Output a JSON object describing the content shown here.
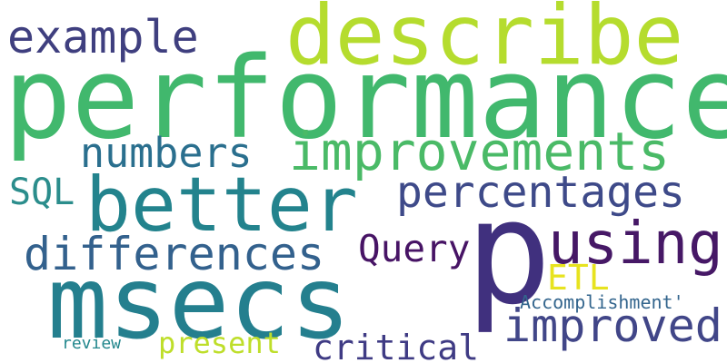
{
  "words": [
    {
      "id": "performance",
      "text": "performance",
      "color": "#41b86d"
    },
    {
      "id": "describe",
      "text": "describe",
      "color": "#b5dc2e"
    },
    {
      "id": "example",
      "text": "example",
      "color": "#3f3f7f"
    },
    {
      "id": "improvements",
      "text": "improvements",
      "color": "#4aba67"
    },
    {
      "id": "numbers",
      "text": "numbers",
      "color": "#2a6f8e"
    },
    {
      "id": "better",
      "text": "better",
      "color": "#23838d"
    },
    {
      "id": "SQL",
      "text": "SQL",
      "color": "#2b8d8c"
    },
    {
      "id": "percentages",
      "text": "percentages",
      "color": "#3e4a89"
    },
    {
      "id": "differences",
      "text": "differences",
      "color": "#33618d"
    },
    {
      "id": "Query",
      "text": "Query",
      "color": "#471465"
    },
    {
      "id": "p",
      "text": "p",
      "color": "#40307e"
    },
    {
      "id": "using",
      "text": "using",
      "color": "#461866"
    },
    {
      "id": "msecs",
      "text": "msecs",
      "color": "#247f8e"
    },
    {
      "id": "ETL",
      "text": "ETL",
      "color": "#e7e31f"
    },
    {
      "id": "Accomplishment",
      "text": "Accomplishment'",
      "color": "#33658d"
    },
    {
      "id": "improved",
      "text": "improved",
      "color": "#414688"
    },
    {
      "id": "review",
      "text": "review",
      "color": "#23878d"
    },
    {
      "id": "present",
      "text": "present",
      "color": "#bede2a"
    },
    {
      "id": "critical",
      "text": "critical",
      "color": "#3f3b84"
    }
  ]
}
